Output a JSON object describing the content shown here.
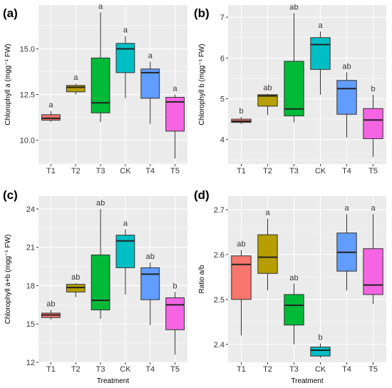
{
  "chart_data": [
    {
      "type": "box",
      "panel": "(a)",
      "ylabel": "Chlorophyll a (mgg⁻¹ FW)",
      "xlabel": "",
      "categories": [
        "T1",
        "T2",
        "T3",
        "CK",
        "T4",
        "T5"
      ],
      "yticks": [
        "10.0",
        "12.5",
        "15.0"
      ],
      "ylim": [
        8.7,
        17.4
      ],
      "grid": true,
      "boxes": [
        {
          "min": 11.0,
          "q1": 11.1,
          "median": 11.2,
          "q3": 11.4,
          "max": 11.6,
          "sig": "a"
        },
        {
          "min": 12.5,
          "q1": 12.65,
          "median": 12.9,
          "q3": 13.0,
          "max": 13.1,
          "sig": "a"
        },
        {
          "min": 11.0,
          "q1": 11.5,
          "median": 12.05,
          "q3": 14.5,
          "max": 17.0,
          "sig": "a"
        },
        {
          "min": 12.3,
          "q1": 13.7,
          "median": 15.0,
          "q3": 15.3,
          "max": 15.7,
          "sig": "a"
        },
        {
          "min": 10.9,
          "q1": 12.3,
          "median": 13.7,
          "q3": 13.9,
          "max": 14.3,
          "sig": "a"
        },
        {
          "min": 9.0,
          "q1": 10.5,
          "median": 12.1,
          "q3": 12.35,
          "max": 12.5,
          "sig": "a"
        }
      ]
    },
    {
      "type": "box",
      "panel": "(b)",
      "ylabel": "Chlorophyll b (mgg⁻¹ FW)",
      "xlabel": "",
      "categories": [
        "T1",
        "T2",
        "T3",
        "CK",
        "T4",
        "T5"
      ],
      "yticks": [
        "4",
        "5",
        "6",
        "7"
      ],
      "ylim": [
        3.4,
        7.3
      ],
      "grid": true,
      "boxes": [
        {
          "min": 4.38,
          "q1": 4.42,
          "median": 4.45,
          "q3": 4.5,
          "max": 4.55,
          "sig": "b"
        },
        {
          "min": 4.6,
          "q1": 4.82,
          "median": 5.07,
          "q3": 5.1,
          "max": 5.12,
          "sig": "ab"
        },
        {
          "min": 4.42,
          "q1": 4.58,
          "median": 4.75,
          "q3": 5.92,
          "max": 7.1,
          "sig": "ab"
        },
        {
          "min": 5.1,
          "q1": 5.72,
          "median": 6.33,
          "q3": 6.5,
          "max": 6.65,
          "sig": "a"
        },
        {
          "min": 4.05,
          "q1": 4.62,
          "median": 5.25,
          "q3": 5.45,
          "max": 5.65,
          "sig": "ab"
        },
        {
          "min": 3.57,
          "q1": 4.02,
          "median": 4.48,
          "q3": 4.76,
          "max": 5.1,
          "sig": "b"
        }
      ]
    },
    {
      "type": "box",
      "panel": "(c)",
      "ylabel": "Chlorophyll a+b (mgg⁻¹ FW)",
      "xlabel": "Treatment",
      "categories": [
        "T1",
        "T2",
        "T3",
        "CK",
        "T4",
        "T5"
      ],
      "yticks": [
        "12",
        "15",
        "18",
        "21",
        "24"
      ],
      "ylim": [
        12.0,
        25.0
      ],
      "grid": true,
      "boxes": [
        {
          "min": 15.35,
          "q1": 15.5,
          "median": 15.7,
          "q3": 15.85,
          "max": 16.1,
          "sig": "ab"
        },
        {
          "min": 17.1,
          "q1": 17.5,
          "median": 17.85,
          "q3": 18.1,
          "max": 18.2,
          "sig": "ab"
        },
        {
          "min": 15.4,
          "q1": 16.1,
          "median": 16.85,
          "q3": 20.4,
          "max": 24.0,
          "sig": "ab"
        },
        {
          "min": 17.3,
          "q1": 19.4,
          "median": 21.5,
          "q3": 21.95,
          "max": 22.4,
          "sig": "a"
        },
        {
          "min": 14.9,
          "q1": 16.9,
          "median": 18.9,
          "q3": 19.4,
          "max": 19.8,
          "sig": "ab"
        },
        {
          "min": 12.6,
          "q1": 14.55,
          "median": 16.5,
          "q3": 17.05,
          "max": 17.5,
          "sig": "b"
        }
      ]
    },
    {
      "type": "box",
      "panel": "(d)",
      "ylabel": "Ratio a/b",
      "xlabel": "Treatment",
      "categories": [
        "T1",
        "T2",
        "T3",
        "CK",
        "T4",
        "T5"
      ],
      "yticks": [
        "2.4",
        "2.5",
        "2.6",
        "2.7"
      ],
      "ylim": [
        2.36,
        2.73
      ],
      "grid": true,
      "boxes": [
        {
          "min": 2.42,
          "q1": 2.5,
          "median": 2.578,
          "q3": 2.597,
          "max": 2.61,
          "sig": "ab"
        },
        {
          "min": 2.52,
          "q1": 2.558,
          "median": 2.594,
          "q3": 2.644,
          "max": 2.68,
          "sig": "a"
        },
        {
          "min": 2.4,
          "q1": 2.443,
          "median": 2.487,
          "q3": 2.511,
          "max": 2.535,
          "sig": "ab"
        },
        {
          "min": 2.37,
          "q1": 2.374,
          "median": 2.387,
          "q3": 2.394,
          "max": 2.402,
          "sig": "b"
        },
        {
          "min": 2.52,
          "q1": 2.563,
          "median": 2.605,
          "q3": 2.648,
          "max": 2.69,
          "sig": "a"
        },
        {
          "min": 2.49,
          "q1": 2.511,
          "median": 2.532,
          "q3": 2.613,
          "max": 2.69,
          "sig": "a"
        }
      ]
    }
  ],
  "colors": {
    "T1": "#f8766d",
    "T2": "#b79f00",
    "T3": "#00ba38",
    "CK": "#00bfc4",
    "T4": "#619cff",
    "T5": "#f564e3",
    "panel_bg": "#ebebeb",
    "grid": "#ffffff"
  }
}
